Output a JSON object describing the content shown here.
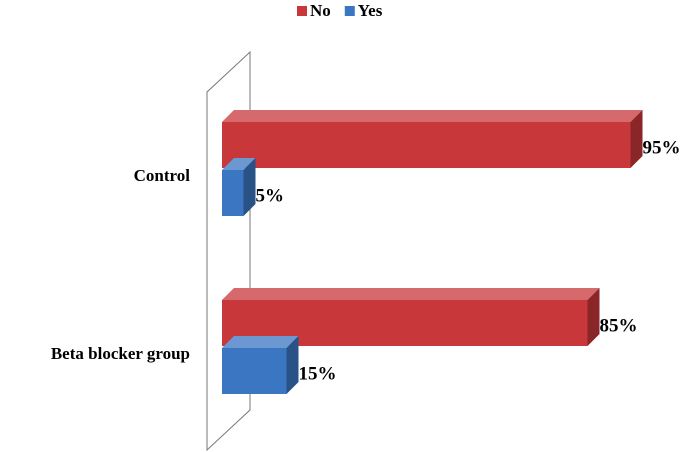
{
  "chart_data": {
    "type": "bar",
    "orientation": "horizontal",
    "categories": [
      "Control",
      "Beta blocker group"
    ],
    "series": [
      {
        "name": "No",
        "color": "#c8373a",
        "values": [
          95,
          85
        ],
        "value_labels": [
          "95%",
          "85%"
        ]
      },
      {
        "name": "Yes",
        "color": "#3b76c2",
        "values": [
          5,
          15
        ],
        "value_labels": [
          "5%",
          "15%"
        ]
      }
    ],
    "legend": "top"
  }
}
